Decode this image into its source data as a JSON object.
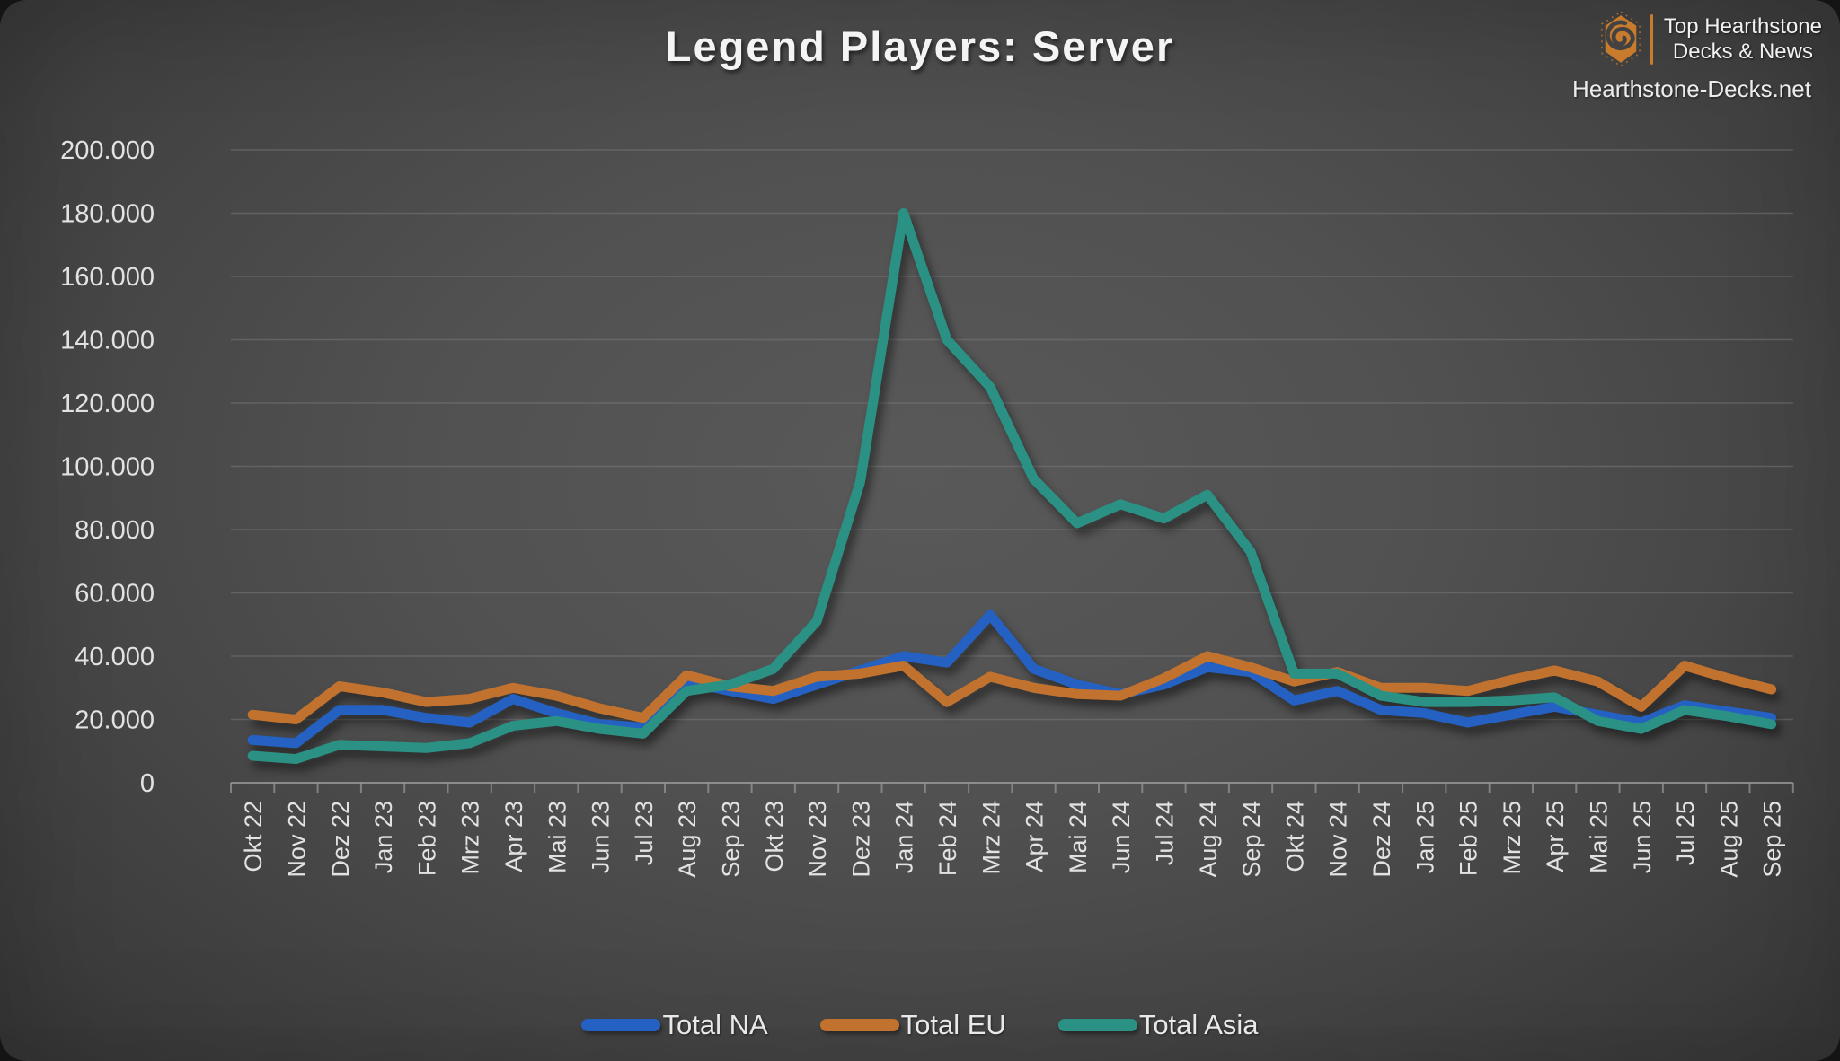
{
  "header": {
    "title": "Legend Players: Server"
  },
  "logo": {
    "icon": "hearthstone-swirl-hexagon-icon",
    "brand_line1": "Top Hearthstone",
    "brand_line2": "Decks & News",
    "site": "Hearthstone-Decks.net",
    "accent_color": "#c87a2d"
  },
  "chart_data": {
    "type": "line",
    "title": "Legend Players: Server",
    "categories": [
      "Okt 22",
      "Nov 22",
      "Dez 22",
      "Jan 23",
      "Feb 23",
      "Mrz 23",
      "Apr 23",
      "Mai 23",
      "Jun 23",
      "Jul 23",
      "Aug 23",
      "Sep 23",
      "Okt 23",
      "Nov 23",
      "Dez 23",
      "Jan 24",
      "Feb 24",
      "Mrz 24",
      "Apr 24",
      "Mai 24",
      "Jun 24",
      "Jul 24",
      "Aug 24",
      "Sep 24",
      "Okt 24",
      "Nov 24",
      "Dez 24",
      "Jan 25",
      "Feb 25",
      "Mrz 25",
      "Apr 25",
      "Mai 25",
      "Jun 25",
      "Jul 25",
      "Aug 25",
      "Sep 25"
    ],
    "series": [
      {
        "name": "Total NA",
        "color": "#2461c2",
        "values": [
          13500,
          12500,
          23000,
          23000,
          20500,
          19000,
          26500,
          22000,
          18500,
          17500,
          32000,
          29000,
          26500,
          31000,
          35500,
          40000,
          38000,
          53000,
          36000,
          31000,
          28000,
          31000,
          36500,
          35000,
          26000,
          29000,
          23000,
          22000,
          19000,
          21500,
          24000,
          21500,
          19000,
          24500,
          22500,
          20500
        ]
      },
      {
        "name": "Total EU",
        "color": "#c0722e",
        "values": [
          21500,
          20000,
          30500,
          28500,
          25500,
          26500,
          30000,
          27500,
          23500,
          20500,
          34000,
          30500,
          29000,
          33500,
          34500,
          37000,
          25500,
          33500,
          30000,
          28000,
          27500,
          33000,
          40000,
          36500,
          32000,
          35000,
          30000,
          30000,
          29000,
          32500,
          35500,
          32000,
          24000,
          37000,
          33000,
          29500
        ]
      },
      {
        "name": "Total Asia",
        "color": "#2a9184",
        "values": [
          8500,
          7500,
          12000,
          11500,
          11000,
          12500,
          18000,
          19500,
          17000,
          15500,
          29000,
          31000,
          36000,
          51000,
          95000,
          180000,
          140000,
          125000,
          96000,
          82000,
          88000,
          83500,
          91000,
          73000,
          34500,
          34500,
          27500,
          25500,
          25500,
          26000,
          27000,
          19500,
          17000,
          23000,
          21000,
          18500
        ]
      }
    ],
    "y_axis": {
      "min": 0,
      "max": 200000,
      "step": 20000,
      "tick_labels": [
        "0",
        "20.000",
        "40.000",
        "60.000",
        "80.000",
        "100.000",
        "120.000",
        "140.000",
        "160.000",
        "180.000",
        "200.000"
      ]
    },
    "grid": true,
    "legend_position": "bottom"
  },
  "colors": {
    "background_center": "#595959",
    "background_edge": "#373737",
    "grid_line": "#848484",
    "axis_text": "#e2e2e2",
    "title_text": "#f4f4f4"
  }
}
